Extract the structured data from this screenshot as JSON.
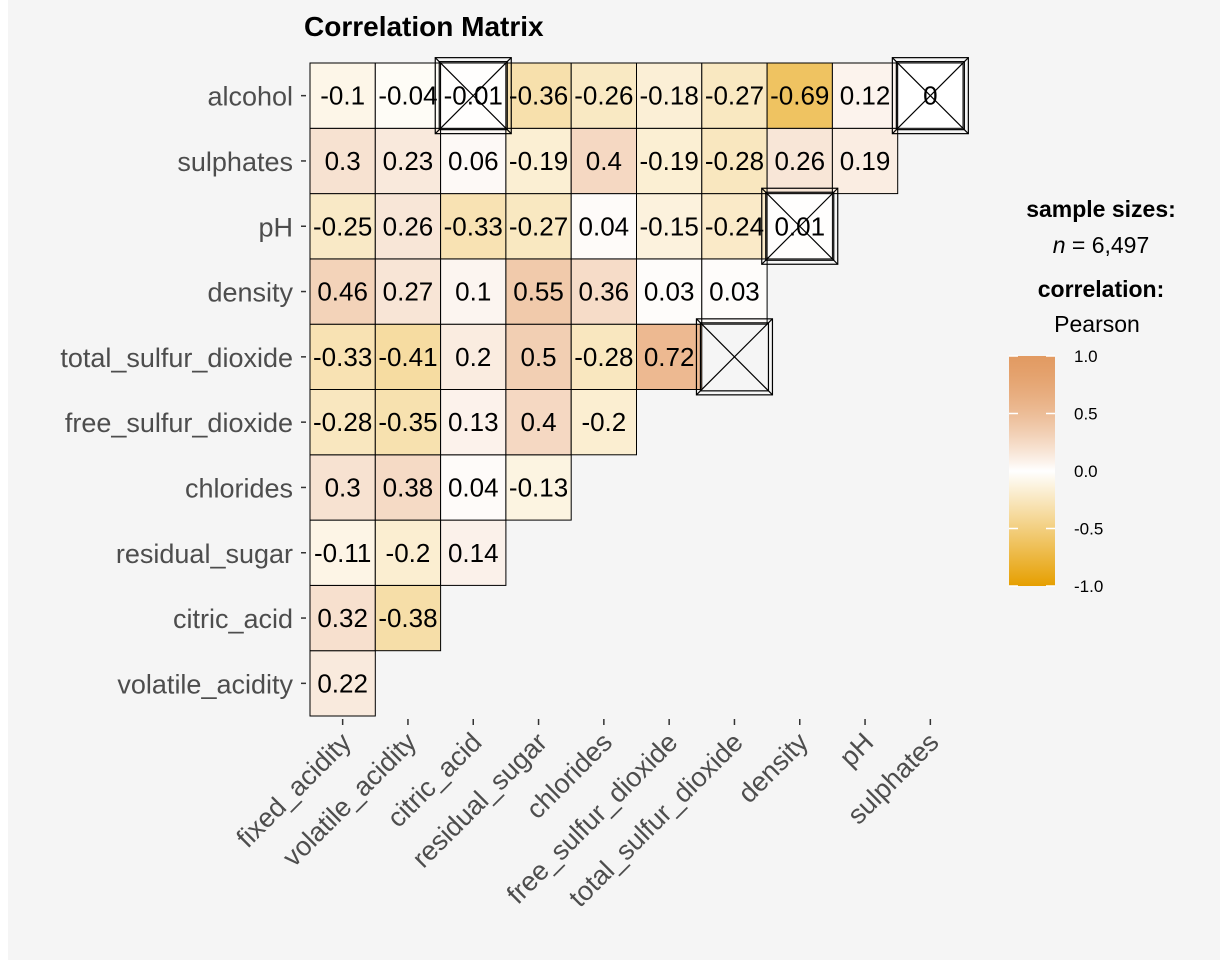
{
  "chart_data": {
    "type": "heatmap",
    "title": "Correlation Matrix",
    "x_labels": [
      "fixed_acidity",
      "volatile_acidity",
      "citric_acid",
      "residual_sugar",
      "chlorides",
      "free_sulfur_dioxide",
      "total_sulfur_dioxide",
      "density",
      "pH",
      "sulphates"
    ],
    "y_labels": [
      "volatile_acidity",
      "citric_acid",
      "residual_sugar",
      "chlorides",
      "free_sulfur_dioxide",
      "total_sulfur_dioxide",
      "density",
      "pH",
      "sulphates",
      "alcohol"
    ],
    "values": [
      [
        0.22,
        null,
        null,
        null,
        null,
        null,
        null,
        null,
        null,
        null
      ],
      [
        0.32,
        -0.38,
        null,
        null,
        null,
        null,
        null,
        null,
        null,
        null
      ],
      [
        -0.11,
        -0.2,
        0.14,
        null,
        null,
        null,
        null,
        null,
        null,
        null
      ],
      [
        0.3,
        0.38,
        0.04,
        -0.13,
        null,
        null,
        null,
        null,
        null,
        null
      ],
      [
        -0.28,
        -0.35,
        0.13,
        0.4,
        -0.2,
        null,
        null,
        null,
        null,
        null
      ],
      [
        -0.33,
        -0.41,
        0.2,
        0.5,
        -0.28,
        0.72,
        null,
        null,
        null,
        null
      ],
      [
        0.46,
        0.27,
        0.1,
        0.55,
        0.36,
        0.03,
        0.03,
        null,
        null,
        null
      ],
      [
        -0.25,
        0.26,
        -0.33,
        -0.27,
        0.04,
        -0.15,
        -0.24,
        0.01,
        null,
        null
      ],
      [
        0.3,
        0.23,
        0.06,
        -0.19,
        0.4,
        -0.19,
        -0.28,
        0.26,
        0.19,
        null
      ],
      [
        -0.1,
        -0.04,
        -0.01,
        -0.36,
        -0.26,
        -0.18,
        -0.27,
        -0.69,
        0.12,
        0
      ]
    ],
    "nonsignificant": [
      [
        5,
        6
      ],
      [
        7,
        7
      ],
      [
        9,
        2
      ],
      [
        9,
        9
      ]
    ],
    "color_scale": {
      "low": "#E69F00",
      "mid": "#FFFFFF",
      "high": "#D55E00",
      "limits": [
        -1,
        1
      ]
    },
    "legend": {
      "position": "right",
      "sample_sizes_title": "sample sizes:",
      "n_symbol": "n",
      "n_value": " = 6,497",
      "correlation_title": "correlation:",
      "correlation_method": "Pearson",
      "ticks": [
        "1.0",
        "0.5",
        "0.0",
        "-0.5",
        "-1.0"
      ]
    }
  }
}
